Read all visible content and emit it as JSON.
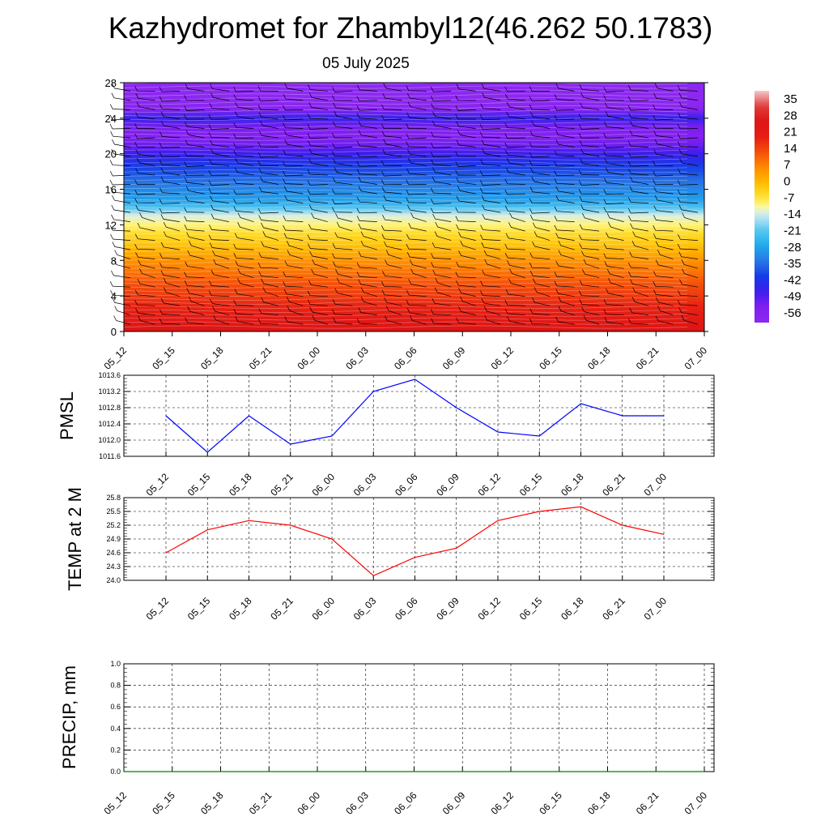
{
  "header": {
    "title": "Kazhydromet for Zhambyl12(46.262 50.1783)",
    "date": "05 July 2025"
  },
  "colors": {
    "pmsl_line": "#0000ff",
    "temp_line": "#ff0000",
    "precip_line": "#008000",
    "grid": "#000000",
    "barb": "#000000",
    "isotherm": "#ffffff"
  },
  "chart_data": [
    {
      "id": "cross-section",
      "type": "heatmap",
      "title": "",
      "xlabel": "",
      "ylabel": "",
      "categories": [
        "05_12",
        "05_15",
        "05_18",
        "05_21",
        "06_00",
        "06_03",
        "06_06",
        "06_09",
        "06_12",
        "06_15",
        "06_18",
        "06_21",
        "07_00"
      ],
      "y_ticks": [
        0,
        4,
        8,
        12,
        16,
        20,
        24,
        28
      ],
      "ylim": [
        0,
        28
      ],
      "colorbar": {
        "labels": [
          "35",
          "28",
          "21",
          "14",
          "7",
          "0",
          "-7",
          "-14",
          "-21",
          "-28",
          "-35",
          "-42",
          "-49",
          "-56"
        ],
        "range": [
          -63,
          42
        ]
      },
      "temperature_profile": {
        "height": [
          0,
          1,
          2,
          3,
          4,
          5,
          6,
          7,
          8,
          9,
          10,
          11,
          12,
          13,
          13.5,
          14,
          15,
          16,
          17,
          18,
          19,
          20,
          21,
          22,
          23,
          24,
          25,
          26,
          28
        ],
        "temp": [
          27,
          25,
          22,
          20,
          17,
          15,
          12,
          9,
          6,
          2,
          -2,
          -5,
          -9,
          -13,
          -18,
          -23,
          -30,
          -33,
          -36,
          -40,
          -44,
          -49,
          -54,
          -58,
          -55,
          -48,
          -60,
          -63,
          -63
        ]
      },
      "wind_barbs": "present"
    },
    {
      "id": "pmsl",
      "type": "line",
      "title": "",
      "xlabel": "",
      "ylabel": "PMSL",
      "categories": [
        "05_12",
        "05_15",
        "05_18",
        "05_21",
        "06_00",
        "06_03",
        "06_06",
        "06_09",
        "06_12",
        "06_15",
        "06_18",
        "06_21",
        "07_00"
      ],
      "series": [
        {
          "values": [
            1012.6,
            1011.7,
            1012.6,
            1011.9,
            1012.1,
            1013.2,
            1013.5,
            1012.8,
            1012.2,
            1012.1,
            1012.9,
            1012.6,
            1012.6
          ]
        }
      ],
      "y_ticks": [
        "1011.6",
        "1012.0",
        "1012.4",
        "1012.8",
        "1013.2",
        "1013.6"
      ],
      "ylim": [
        1011.6,
        1013.6
      ],
      "grid": true
    },
    {
      "id": "temp2m",
      "type": "line",
      "title": "",
      "xlabel": "",
      "ylabel": "TEMP at 2 M",
      "categories": [
        "05_12",
        "05_15",
        "05_18",
        "05_21",
        "06_00",
        "06_03",
        "06_06",
        "06_09",
        "06_12",
        "06_15",
        "06_18",
        "06_21",
        "07_00"
      ],
      "series": [
        {
          "values": [
            24.6,
            25.1,
            25.3,
            25.2,
            24.9,
            24.1,
            24.5,
            24.7,
            25.3,
            25.5,
            25.6,
            25.2,
            25.0
          ]
        }
      ],
      "y_ticks": [
        "24.0",
        "24.3",
        "24.6",
        "24.9",
        "25.2",
        "25.5",
        "25.8"
      ],
      "ylim": [
        24.0,
        25.8
      ],
      "grid": true
    },
    {
      "id": "precip",
      "type": "line",
      "title": "",
      "xlabel": "",
      "ylabel": "PRECIP, mm",
      "categories": [
        "05_12",
        "05_15",
        "05_18",
        "05_21",
        "06_00",
        "06_03",
        "06_06",
        "06_09",
        "06_12",
        "06_15",
        "06_18",
        "06_21",
        "07_00"
      ],
      "series": [
        {
          "values": [
            0,
            0,
            0,
            0,
            0,
            0,
            0,
            0,
            0,
            0,
            0,
            0,
            0
          ]
        }
      ],
      "y_ticks": [
        "0.0",
        "0.2",
        "0.4",
        "0.6",
        "0.8",
        "1.0"
      ],
      "ylim": [
        0,
        1.0
      ],
      "grid": true
    }
  ]
}
